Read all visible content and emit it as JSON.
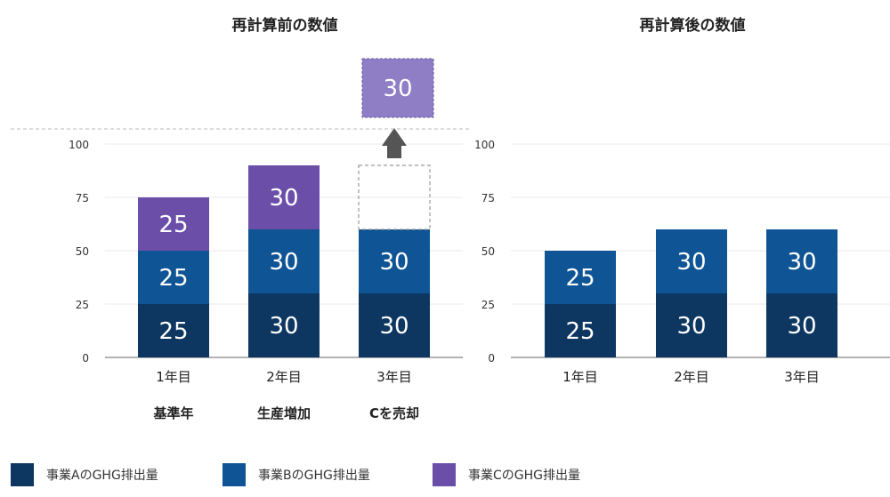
{
  "chart_data": [
    {
      "type": "bar",
      "stacked": true,
      "title": "再計算前の数値",
      "categories": [
        "1年目",
        "2年目",
        "3年目"
      ],
      "category_notes": [
        "基準年",
        "生産増加",
        "Cを売却"
      ],
      "ylim": [
        0,
        100
      ],
      "yticks": [
        0,
        25,
        50,
        75,
        100
      ],
      "grid": true,
      "series": [
        {
          "name": "事業AのGHG排出量",
          "values": [
            25,
            30,
            30
          ]
        },
        {
          "name": "事業BのGHG排出量",
          "values": [
            25,
            30,
            30
          ]
        },
        {
          "name": "事業CのGHG排出量",
          "values": [
            25,
            30,
            null
          ]
        }
      ],
      "removed_segment": {
        "category": "3年目",
        "series": "事業CのGHG排出量",
        "value": 30,
        "label": "30"
      }
    },
    {
      "type": "bar",
      "stacked": true,
      "title": "再計算後の数値",
      "categories": [
        "1年目",
        "2年目",
        "3年目"
      ],
      "ylim": [
        0,
        100
      ],
      "yticks": [
        0,
        25,
        50,
        75,
        100
      ],
      "grid": true,
      "series": [
        {
          "name": "事業AのGHG排出量",
          "values": [
            25,
            30,
            30
          ]
        },
        {
          "name": "事業BのGHG排出量",
          "values": [
            25,
            30,
            30
          ]
        }
      ]
    }
  ],
  "legend": {
    "placement": "bottom",
    "items": [
      {
        "label": "事業AのGHG排出量",
        "color": "#0d3761"
      },
      {
        "label": "事業BのGHG排出量",
        "color": "#0f5494"
      },
      {
        "label": "事業CのGHG排出量",
        "color": "#6a4ea8"
      }
    ]
  },
  "colors": {
    "A": "#0d3761",
    "B": "#0f5494",
    "C": "#6a4ea8",
    "C_removed": "#8f7dc6",
    "arrow": "#555555",
    "grid": "#e8e8e8",
    "dashed": "#999999"
  }
}
